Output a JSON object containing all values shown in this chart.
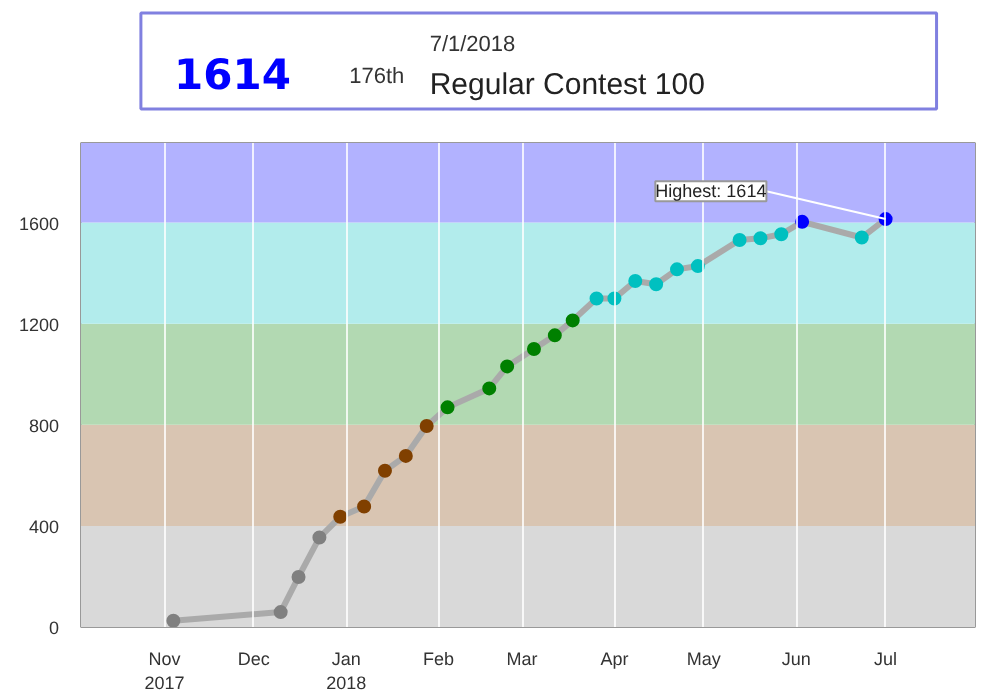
{
  "chart_data": {
    "type": "line",
    "title": "Regular Contest 100",
    "annotations": [
      "1614",
      "176th",
      "7/1/2018",
      {
        "text": "Highest: 1614",
        "x": "2018-07-01",
        "y": 1614
      }
    ],
    "x": [
      "2017-11-04",
      "2017-12-10",
      "2017-12-16",
      "2017-12-23",
      "2017-12-30",
      "2018-01-07",
      "2018-01-14",
      "2018-01-21",
      "2018-01-28",
      "2018-02-04",
      "2018-02-18",
      "2018-02-24",
      "2018-03-05",
      "2018-03-12",
      "2018-03-18",
      "2018-03-26",
      "2018-04-01",
      "2018-04-08",
      "2018-04-15",
      "2018-04-22",
      "2018-04-29",
      "2018-05-13",
      "2018-05-20",
      "2018-05-27",
      "2018-06-03",
      "2018-06-23",
      "2018-07-01"
    ],
    "series": [
      {
        "color": "#aaaaaa",
        "values": [
          25,
          59,
          198,
          354,
          436,
          477,
          618,
          677,
          795,
          869,
          944,
          1031,
          1100,
          1154,
          1213,
          1300,
          1300,
          1369,
          1356,
          1415,
          1428,
          1531,
          1538,
          1554,
          1603,
          1541,
          1614
        ],
        "colors": [
          "#808080",
          "#808080",
          "#808080",
          "#808080",
          "#804000",
          "#804000",
          "#804000",
          "#804000",
          "#804000",
          "#008000",
          "#008000",
          "#008000",
          "#008000",
          "#008000",
          "#008000",
          "#00c0c0",
          "#00c0c0",
          "#00c0c0",
          "#00c0c0",
          "#00c0c0",
          "#00c0c0",
          "#00c0c0",
          "#00c0c0",
          "#00c0c0",
          "#0000ff",
          "#00c0c0",
          "#0000ff"
        ]
      }
    ],
    "xlim": [
      "2017-10-04",
      "2018-07-31"
    ],
    "xticks": [
      {
        "value": "2017-11-01",
        "label": "Nov\n2017"
      },
      {
        "value": "2017-12-01",
        "label": "Dec"
      },
      {
        "value": "2018-01-01",
        "label": "Jan\n2018"
      },
      {
        "value": "2018-02-01",
        "label": "Feb"
      },
      {
        "value": "2018-03-01",
        "label": "Mar"
      },
      {
        "value": "2018-04-01",
        "label": "Apr"
      },
      {
        "value": "2018-05-01",
        "label": "May"
      },
      {
        "value": "2018-06-01",
        "label": "Jun"
      },
      {
        "value": "2018-07-01",
        "label": "Jul"
      }
    ],
    "ylim": [
      0,
      1915
    ],
    "yticks": [
      0,
      400,
      800,
      1200,
      1600
    ],
    "bands": [
      {
        "axis": "y",
        "from": 0,
        "to": 400,
        "color": "#d9d9d9"
      },
      {
        "axis": "y",
        "from": 400,
        "to": 800,
        "color": "#d9c5b2"
      },
      {
        "axis": "y",
        "from": 800,
        "to": 1200,
        "color": "#b2d9b2"
      },
      {
        "axis": "y",
        "from": 1200,
        "to": 1600,
        "color": "#b2ecec"
      },
      {
        "axis": "y",
        "from": 1600,
        "to": 1915,
        "color": "#b2b2ff"
      }
    ],
    "grid": "x",
    "marker": "circle",
    "line_style": "solid"
  }
}
